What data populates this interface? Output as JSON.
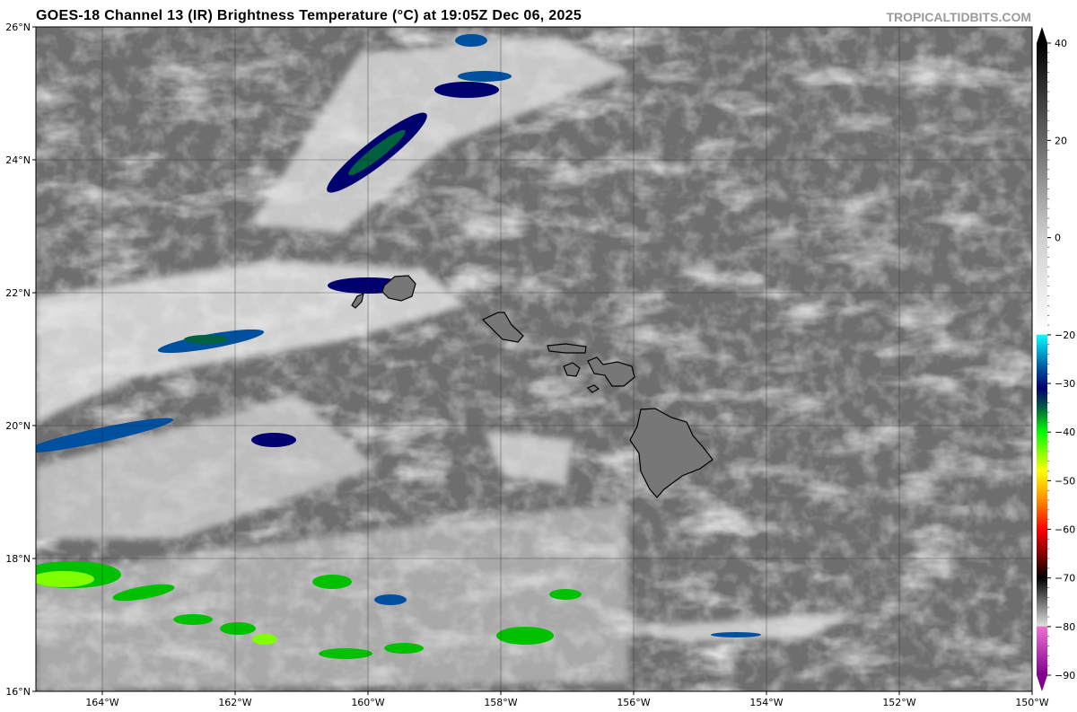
{
  "header": {
    "title": "GOES-18 Channel 13 (IR) Brightness Temperature (°C) at 19:05Z Dec 06, 2025",
    "brand": "TROPICALTIDBITS.COM"
  },
  "map": {
    "lon_range": [
      -165,
      -150
    ],
    "lat_range": [
      16,
      26
    ],
    "lon_ticks": [
      "164°W",
      "162°W",
      "160°W",
      "158°W",
      "156°W",
      "154°W",
      "152°W",
      "150°W"
    ],
    "lon_tick_values": [
      -164,
      -162,
      -160,
      -158,
      -156,
      -154,
      -152,
      -150
    ],
    "lat_ticks": [
      "16°N",
      "18°N",
      "20°N",
      "22°N",
      "24°N",
      "26°N"
    ],
    "lat_tick_values": [
      16,
      18,
      20,
      22,
      24,
      26
    ],
    "grid": true,
    "background_color": "#6e6e6e",
    "features": [
      "Niihau",
      "Kauai",
      "Oahu",
      "Molokai",
      "Lanai",
      "Maui",
      "Kahoolawe",
      "Hawaii"
    ]
  },
  "colorbar": {
    "range": [
      -90,
      40
    ],
    "tick_labels": [
      "40",
      "20",
      "0",
      "−20",
      "−30",
      "−40",
      "−50",
      "−60",
      "−70",
      "−80",
      "−90"
    ],
    "tick_values": [
      40,
      20,
      0,
      -20,
      -30,
      -40,
      -50,
      -60,
      -70,
      -80,
      -90
    ],
    "stops": [
      {
        "t": 40,
        "c": "#000000"
      },
      {
        "t": 0,
        "c": "#cfcfcf"
      },
      {
        "t": -19.9,
        "c": "#ffffff"
      },
      {
        "t": -20,
        "c": "#00ffff"
      },
      {
        "t": -27,
        "c": "#0050a0"
      },
      {
        "t": -31,
        "c": "#00006e"
      },
      {
        "t": -35,
        "c": "#006040"
      },
      {
        "t": -40,
        "c": "#00ff00"
      },
      {
        "t": -48,
        "c": "#ffff00"
      },
      {
        "t": -53,
        "c": "#ffa000"
      },
      {
        "t": -60,
        "c": "#ff0000"
      },
      {
        "t": -66,
        "c": "#700000"
      },
      {
        "t": -70,
        "c": "#000000"
      },
      {
        "t": -79.9,
        "c": "#e0e0e0"
      },
      {
        "t": -80,
        "c": "#f070d0"
      },
      {
        "t": -90,
        "c": "#800090"
      }
    ]
  }
}
